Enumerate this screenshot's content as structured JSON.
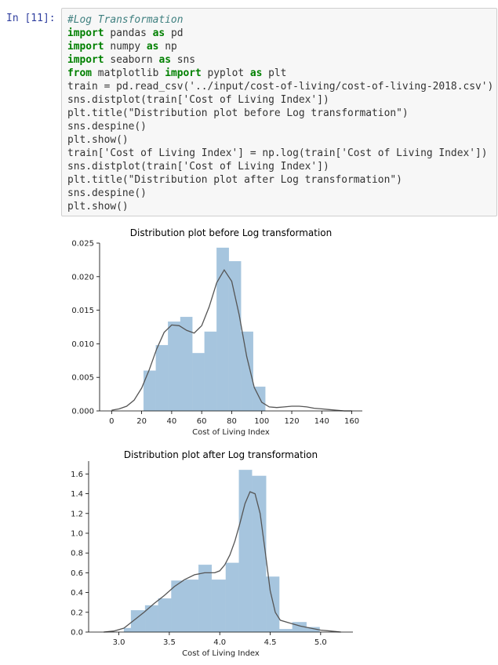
{
  "cell": {
    "prompt": "In [11]:",
    "code_lines": [
      [
        {
          "t": "#Log Transformation",
          "c": "cm"
        }
      ],
      [
        {
          "t": "import",
          "c": "kw"
        },
        {
          "t": " pandas "
        },
        {
          "t": "as",
          "c": "kw"
        },
        {
          "t": " pd"
        }
      ],
      [
        {
          "t": "import",
          "c": "kw"
        },
        {
          "t": " numpy "
        },
        {
          "t": "as",
          "c": "kw"
        },
        {
          "t": " np"
        }
      ],
      [
        {
          "t": "import",
          "c": "kw"
        },
        {
          "t": " seaborn "
        },
        {
          "t": "as",
          "c": "kw"
        },
        {
          "t": " sns"
        }
      ],
      [
        {
          "t": "from",
          "c": "kw"
        },
        {
          "t": " matplotlib "
        },
        {
          "t": "import",
          "c": "kw"
        },
        {
          "t": " pyplot "
        },
        {
          "t": "as",
          "c": "kw"
        },
        {
          "t": " plt"
        }
      ],
      [
        {
          "t": "train = pd.read_csv('../input/cost-of-living/cost-of-living-2018.csv')"
        }
      ],
      [
        {
          "t": "sns.distplot(train['Cost of Living Index'])"
        }
      ],
      [
        {
          "t": "plt.title(\"Distribution plot before Log transformation\")"
        }
      ],
      [
        {
          "t": "sns.despine()"
        }
      ],
      [
        {
          "t": "plt.show()"
        }
      ],
      [
        {
          "t": "train['Cost of Living Index'] = np.log(train['Cost of Living Index'])"
        }
      ],
      [
        {
          "t": "sns.distplot(train['Cost of Living Index'])"
        }
      ],
      [
        {
          "t": "plt.title(\"Distribution plot after Log transformation\")"
        }
      ],
      [
        {
          "t": "sns.despine()"
        }
      ],
      [
        {
          "t": "plt.show()"
        }
      ]
    ]
  },
  "chart_data": [
    {
      "type": "bar",
      "title": "Distribution plot before Log transformation",
      "xlabel": "Cost of Living Index",
      "ylabel": "",
      "xlim": [
        -8,
        167
      ],
      "ylim": [
        0,
        0.025
      ],
      "xticks": [
        0,
        20,
        40,
        60,
        80,
        100,
        120,
        140,
        160
      ],
      "xtick_labels": [
        "0",
        "20",
        "40",
        "60",
        "80",
        "100",
        "120",
        "140",
        "160"
      ],
      "yticks": [
        0,
        0.005,
        0.01,
        0.015,
        0.02,
        0.025
      ],
      "ytick_labels": [
        "0.000",
        "0.005",
        "0.010",
        "0.015",
        "0.020",
        "0.025"
      ],
      "bar_color": "#a6c5de",
      "kde_color": "#555555",
      "bins": [
        {
          "x0": 21.3,
          "x1": 29.5,
          "h": 0.006
        },
        {
          "x0": 29.5,
          "x1": 37.6,
          "h": 0.0098
        },
        {
          "x0": 37.6,
          "x1": 45.8,
          "h": 0.0133
        },
        {
          "x0": 45.8,
          "x1": 53.8,
          "h": 0.014
        },
        {
          "x0": 53.8,
          "x1": 61.9,
          "h": 0.0086
        },
        {
          "x0": 61.9,
          "x1": 70.0,
          "h": 0.0118
        },
        {
          "x0": 70.0,
          "x1": 78.1,
          "h": 0.0243
        },
        {
          "x0": 78.1,
          "x1": 86.2,
          "h": 0.0223
        },
        {
          "x0": 86.2,
          "x1": 94.3,
          "h": 0.0118
        },
        {
          "x0": 94.3,
          "x1": 102.4,
          "h": 0.0036
        }
      ],
      "kde": [
        [
          0,
          0.0001
        ],
        [
          5,
          0.0003
        ],
        [
          10,
          0.0007
        ],
        [
          15,
          0.0016
        ],
        [
          20,
          0.0034
        ],
        [
          25,
          0.0061
        ],
        [
          30,
          0.0092
        ],
        [
          35,
          0.0117
        ],
        [
          40,
          0.0128
        ],
        [
          45,
          0.0127
        ],
        [
          50,
          0.012
        ],
        [
          55,
          0.0116
        ],
        [
          60,
          0.0127
        ],
        [
          65,
          0.0155
        ],
        [
          70,
          0.0191
        ],
        [
          75,
          0.021
        ],
        [
          80,
          0.0193
        ],
        [
          85,
          0.0143
        ],
        [
          90,
          0.0081
        ],
        [
          95,
          0.0035
        ],
        [
          100,
          0.0013
        ],
        [
          105,
          0.0006
        ],
        [
          110,
          0.0005
        ],
        [
          115,
          0.0006
        ],
        [
          120,
          0.0007
        ],
        [
          125,
          0.0007
        ],
        [
          130,
          0.0006
        ],
        [
          135,
          0.0004
        ],
        [
          140,
          0.0003
        ],
        [
          145,
          0.0002
        ],
        [
          150,
          0.0001
        ],
        [
          155,
          0
        ],
        [
          160,
          0
        ]
      ]
    },
    {
      "type": "bar",
      "title": "Distribution plot after Log transformation",
      "xlabel": "Cost of Living Index",
      "ylabel": "",
      "xlim": [
        2.7,
        5.32
      ],
      "ylim": [
        0,
        1.73
      ],
      "xticks": [
        3.0,
        3.5,
        4.0,
        4.5,
        5.0
      ],
      "xtick_labels": [
        "3.0",
        "3.5",
        "4.0",
        "4.5",
        "5.0"
      ],
      "yticks": [
        0,
        0.2,
        0.4,
        0.6,
        0.8,
        1.0,
        1.2,
        1.4,
        1.6
      ],
      "ytick_labels": [
        "0.0",
        "0.2",
        "0.4",
        "0.6",
        "0.8",
        "1.0",
        "1.2",
        "1.4",
        "1.6"
      ],
      "bar_color": "#a6c5de",
      "kde_color": "#555555",
      "bins": [
        {
          "x0": 3.05,
          "x1": 3.12,
          "h": 0.04
        },
        {
          "x0": 3.12,
          "x1": 3.26,
          "h": 0.22
        },
        {
          "x0": 3.26,
          "x1": 3.39,
          "h": 0.27
        },
        {
          "x0": 3.39,
          "x1": 3.52,
          "h": 0.34
        },
        {
          "x0": 3.52,
          "x1": 3.66,
          "h": 0.52
        },
        {
          "x0": 3.66,
          "x1": 3.79,
          "h": 0.53
        },
        {
          "x0": 3.79,
          "x1": 3.92,
          "h": 0.68
        },
        {
          "x0": 3.92,
          "x1": 4.06,
          "h": 0.53
        },
        {
          "x0": 4.06,
          "x1": 4.19,
          "h": 0.7
        },
        {
          "x0": 4.19,
          "x1": 4.32,
          "h": 1.64
        },
        {
          "x0": 4.32,
          "x1": 4.46,
          "h": 1.58
        },
        {
          "x0": 4.46,
          "x1": 4.59,
          "h": 0.56
        },
        {
          "x0": 4.59,
          "x1": 4.72,
          "h": 0.03
        },
        {
          "x0": 4.72,
          "x1": 4.86,
          "h": 0.1
        },
        {
          "x0": 4.86,
          "x1": 4.99,
          "h": 0.05
        }
      ],
      "kde": [
        [
          2.85,
          0
        ],
        [
          2.95,
          0.01
        ],
        [
          3.05,
          0.04
        ],
        [
          3.15,
          0.12
        ],
        [
          3.25,
          0.2
        ],
        [
          3.35,
          0.29
        ],
        [
          3.45,
          0.37
        ],
        [
          3.55,
          0.46
        ],
        [
          3.65,
          0.53
        ],
        [
          3.75,
          0.58
        ],
        [
          3.85,
          0.6
        ],
        [
          3.95,
          0.6
        ],
        [
          4.0,
          0.62
        ],
        [
          4.05,
          0.68
        ],
        [
          4.1,
          0.78
        ],
        [
          4.15,
          0.92
        ],
        [
          4.2,
          1.1
        ],
        [
          4.25,
          1.3
        ],
        [
          4.3,
          1.42
        ],
        [
          4.35,
          1.4
        ],
        [
          4.4,
          1.2
        ],
        [
          4.45,
          0.82
        ],
        [
          4.5,
          0.42
        ],
        [
          4.55,
          0.2
        ],
        [
          4.6,
          0.12
        ],
        [
          4.7,
          0.09
        ],
        [
          4.8,
          0.06
        ],
        [
          4.9,
          0.04
        ],
        [
          5.0,
          0.02
        ],
        [
          5.1,
          0.01
        ],
        [
          5.2,
          0
        ]
      ]
    }
  ]
}
